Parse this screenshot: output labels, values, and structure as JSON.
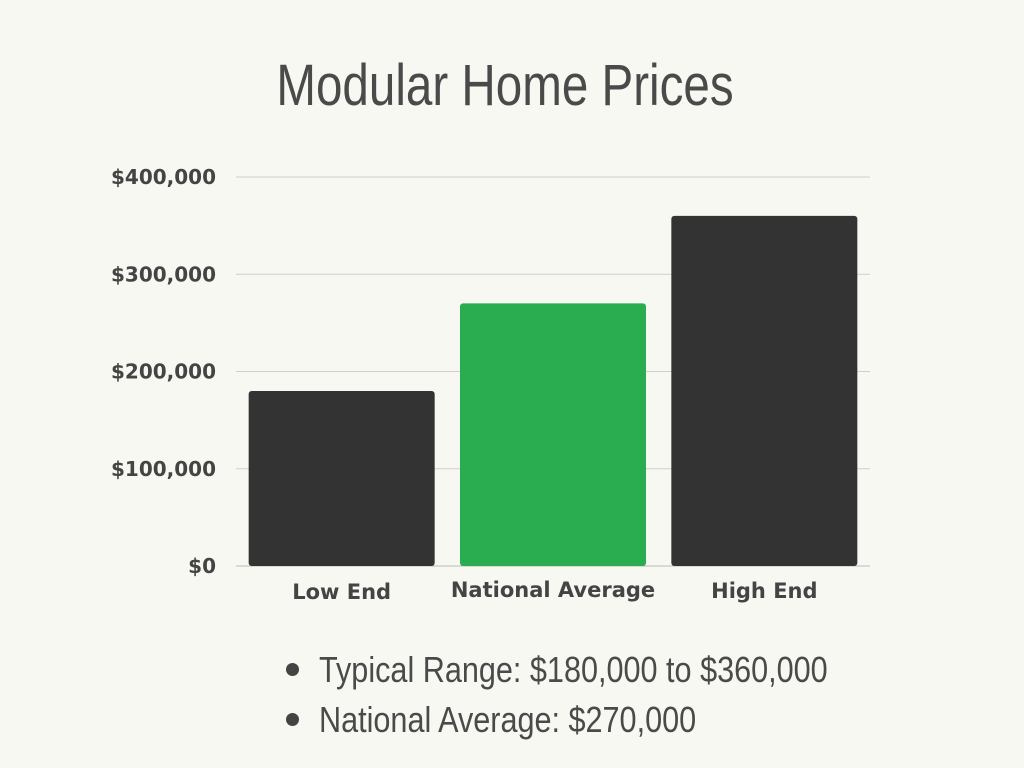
{
  "chart_data": {
    "type": "bar",
    "title": "Modular Home Prices",
    "categories": [
      "Low End",
      "National Average",
      "High End"
    ],
    "values": [
      180000,
      270000,
      360000
    ],
    "ylim": [
      0,
      400000
    ],
    "yticks": [
      0,
      100000,
      200000,
      300000,
      400000
    ],
    "ytick_labels": [
      "$0",
      "$100,000",
      "$200,000",
      "$300,000",
      "$400,000"
    ],
    "grid": true,
    "colors": [
      "#333333",
      "#2aad50",
      "#333333"
    ]
  },
  "notes": [
    "Typical Range: $180,000 to $360,000",
    "National Average: $270,000"
  ]
}
